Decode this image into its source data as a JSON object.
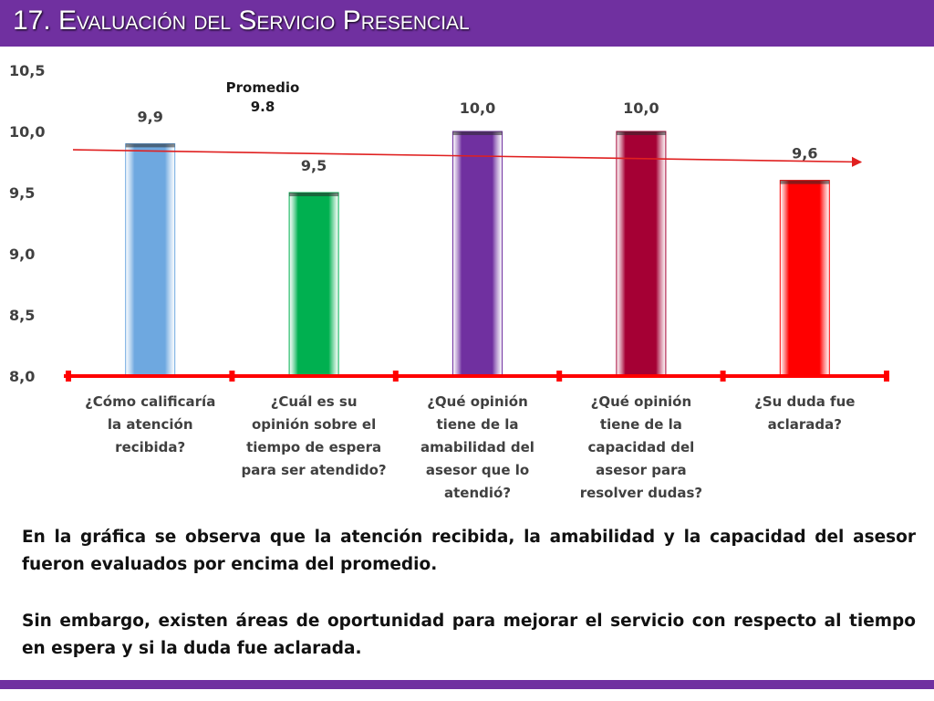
{
  "header": {
    "title": "17. Evaluación del Servicio Presencial",
    "bg_color": "#7030a0"
  },
  "chart_data": {
    "type": "bar",
    "categories": [
      [
        "¿Cómo calificaría",
        "la atención",
        "recibida?"
      ],
      [
        "¿Cuál es su",
        "opinión sobre el",
        "tiempo de espera",
        "para ser atendido?"
      ],
      [
        "¿Qué opinión",
        "tiene de la",
        "amabilidad del",
        "asesor que lo",
        "atendió?"
      ],
      [
        "¿Qué opinión",
        "tiene de la",
        "capacidad del",
        "asesor para",
        "resolver dudas?"
      ],
      [
        "¿Su duda fue",
        "aclarada?"
      ]
    ],
    "values": [
      9.9,
      9.5,
      10.0,
      10.0,
      9.6
    ],
    "value_labels": [
      "9,9",
      "9,5",
      "10,0",
      "10,0",
      "9,6"
    ],
    "colors": [
      "#6ea8e0",
      "#00b050",
      "#7030a0",
      "#a50034",
      "#ff0000"
    ],
    "ylim": [
      8.0,
      10.5
    ],
    "yticks": [
      8.0,
      8.5,
      9.0,
      9.5,
      10.0,
      10.5
    ],
    "ytick_labels": [
      "8,0",
      "8,5",
      "9,0",
      "9,5",
      "10,0",
      "10,5"
    ],
    "average": {
      "label": "Promedio",
      "value_label": "9.8",
      "value": 9.8,
      "color": "#e02020"
    },
    "axis_color": "#ff0000"
  },
  "text": {
    "p1": "En la gráfica se observa que la atención recibida, la amabilidad y la capacidad del asesor fueron evaluados por encima del promedio.",
    "p2": "Sin embargo, existen áreas de oportunidad para mejorar el servicio con respecto al tiempo en espera y si la duda fue aclarada."
  }
}
